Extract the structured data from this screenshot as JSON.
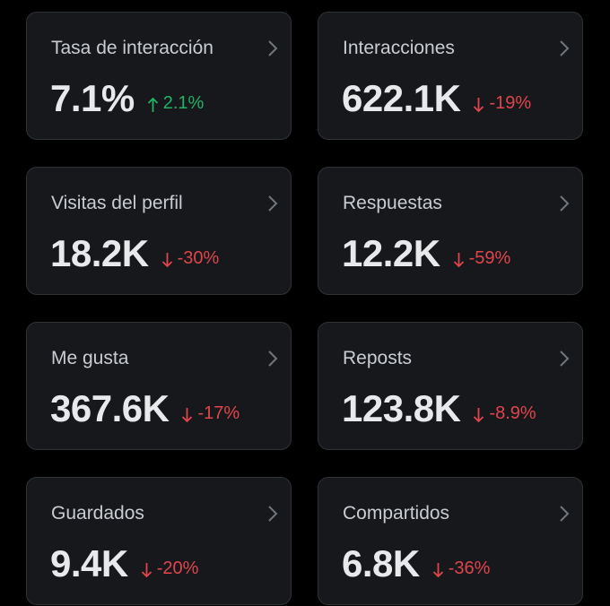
{
  "colors": {
    "background": "#000000",
    "card": "#16181c",
    "border": "#2f3336",
    "positive": "#21b265",
    "negative": "#e0454b"
  },
  "cards": [
    {
      "label": "Tasa de interacción",
      "value": "7.1%",
      "change": "2.1%",
      "direction": "up"
    },
    {
      "label": "Interacciones",
      "value": "622.1K",
      "change": "-19%",
      "direction": "down"
    },
    {
      "label": "Visitas del perfil",
      "value": "18.2K",
      "change": "-30%",
      "direction": "down"
    },
    {
      "label": "Respuestas",
      "value": "12.2K",
      "change": "-59%",
      "direction": "down"
    },
    {
      "label": "Me gusta",
      "value": "367.6K",
      "change": "-17%",
      "direction": "down"
    },
    {
      "label": "Reposts",
      "value": "123.8K",
      "change": "-8.9%",
      "direction": "down"
    },
    {
      "label": "Guardados",
      "value": "9.4K",
      "change": "-20%",
      "direction": "down"
    },
    {
      "label": "Compartidos",
      "value": "6.8K",
      "change": "-36%",
      "direction": "down"
    }
  ]
}
